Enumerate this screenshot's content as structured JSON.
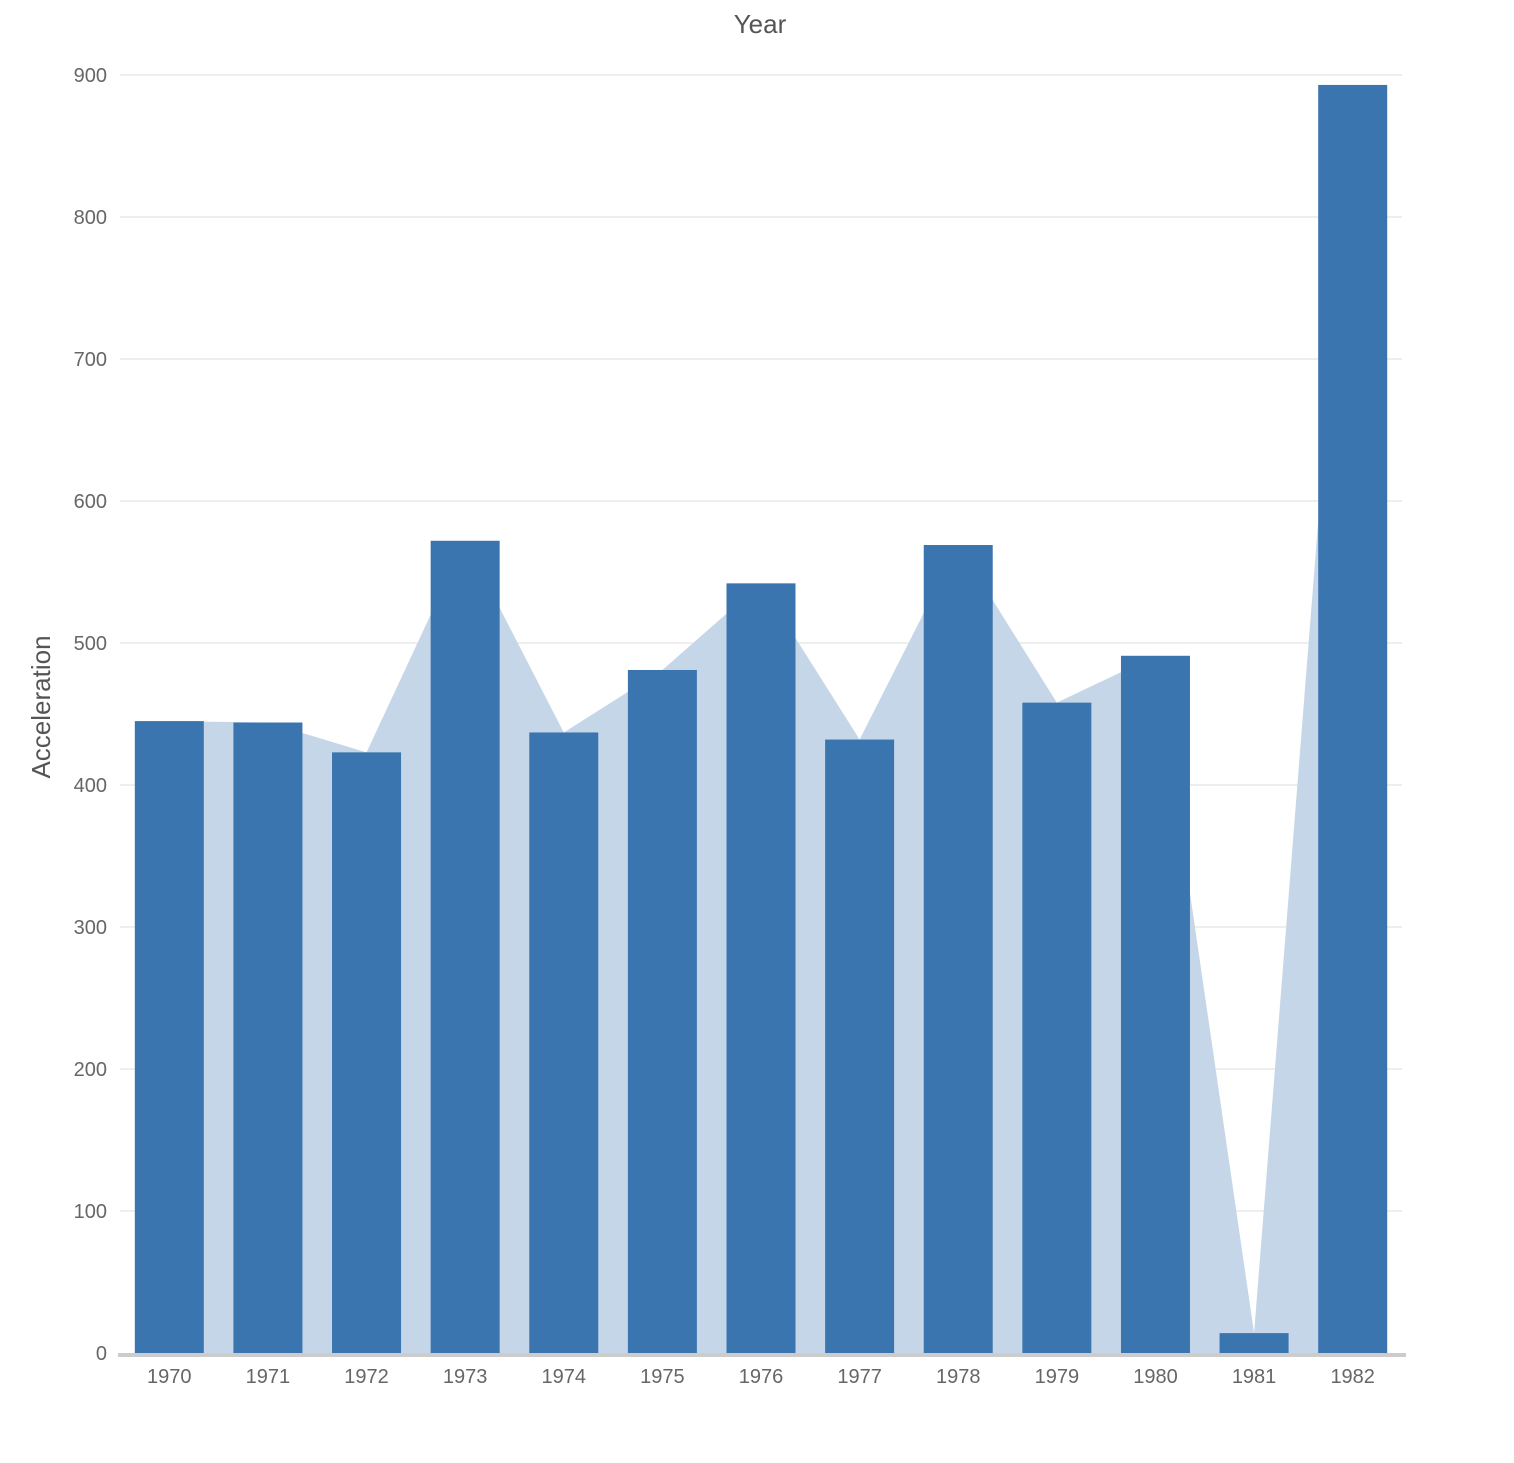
{
  "chart_data": {
    "type": "bar",
    "title": "",
    "xlabel": "Year",
    "ylabel": "Acceleration",
    "categories": [
      "1970",
      "1971",
      "1972",
      "1973",
      "1974",
      "1975",
      "1976",
      "1977",
      "1978",
      "1979",
      "1980",
      "1981",
      "1982"
    ],
    "series": [
      {
        "values": [
          445,
          444,
          423,
          572,
          437,
          481,
          542,
          432,
          569,
          458,
          491,
          14,
          893
        ],
        "render": "bar",
        "color": "#3b75af"
      },
      {
        "values": [
          445,
          444,
          423,
          572,
          437,
          481,
          542,
          432,
          569,
          458,
          491,
          14,
          893
        ],
        "render": "area",
        "color": "#c5d6e8"
      }
    ],
    "ylim": [
      0,
      900
    ],
    "yticks": [
      0,
      100,
      200,
      300,
      400,
      500,
      600,
      700,
      800,
      900
    ],
    "grid": true,
    "legend": "none",
    "colors": {
      "bar": "#3b75af",
      "area": "#c5d6e8",
      "grid": "#eeeeee",
      "axis": "#cccccc",
      "tick_text": "#666666",
      "title_text": "#555555"
    }
  }
}
